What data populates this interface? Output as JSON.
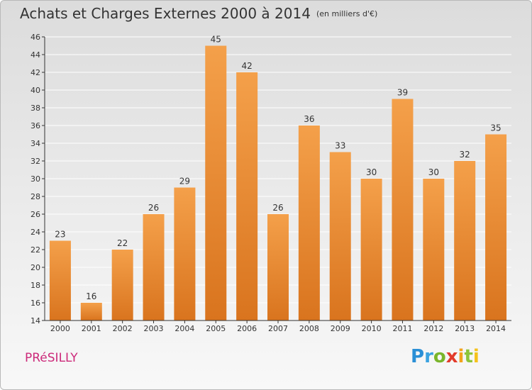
{
  "header": {
    "title": "Achats et Charges Externes 2000 à 2014",
    "unit": "(en milliers d'€)"
  },
  "footer": {
    "commune": "PRéSILLY",
    "logo_letters": [
      {
        "char": "P",
        "color": "#2a8fd6"
      },
      {
        "char": "r",
        "color": "#3aa2e0"
      },
      {
        "char": "o",
        "color": "#7ab52b"
      },
      {
        "char": "x",
        "color": "#e23b2b"
      },
      {
        "char": "i",
        "color": "#f2a31c"
      },
      {
        "char": "t",
        "color": "#8cc43a"
      },
      {
        "char": "i",
        "color": "#f5c21b"
      }
    ]
  },
  "colors": {
    "bar_light": "#f4a04a",
    "bar_dark": "#d9741e",
    "axis": "#333333",
    "grid": "#ffffff"
  },
  "chart_data": {
    "type": "bar",
    "title": "Achats et Charges Externes 2000 à 2014",
    "subtitle": "(en milliers d'€)",
    "xlabel": "",
    "ylabel": "",
    "categories": [
      "2000",
      "2001",
      "2002",
      "2003",
      "2004",
      "2005",
      "2006",
      "2007",
      "2008",
      "2009",
      "2010",
      "2011",
      "2012",
      "2013",
      "2014"
    ],
    "values": [
      23,
      16,
      22,
      26,
      29,
      45,
      42,
      26,
      36,
      33,
      30,
      39,
      30,
      32,
      35
    ],
    "ylim": [
      14,
      46
    ],
    "yticks": [
      14,
      16,
      18,
      20,
      22,
      24,
      26,
      28,
      30,
      32,
      34,
      36,
      38,
      40,
      42,
      44,
      46
    ],
    "grid": true,
    "legend": "none"
  }
}
